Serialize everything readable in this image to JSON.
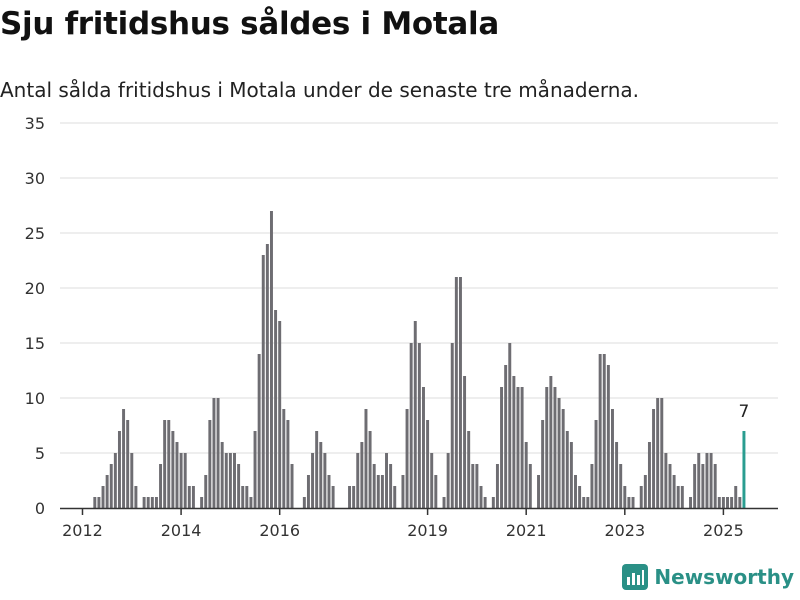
{
  "title": "Sju fritidshus såldes i Motala",
  "subtitle": "Antal sålda fritidshus i Motala under de senaste tre månaderna.",
  "brand": {
    "name": "Newsworthy",
    "icon": "newsworthy-logo-icon",
    "color": "#2a9086"
  },
  "colors": {
    "bar": "#6e6d72",
    "highlight": "#2a9d90",
    "grid": "#dddddd",
    "axis": "#333333"
  },
  "chart_data": {
    "type": "bar",
    "ylim": [
      0,
      35
    ],
    "yticks": [
      0,
      5,
      10,
      15,
      20,
      25,
      30,
      35
    ],
    "xticks": [
      {
        "label": "2012",
        "index": 4
      },
      {
        "label": "2014",
        "index": 28
      },
      {
        "label": "2016",
        "index": 52
      },
      {
        "label": "2019",
        "index": 88
      },
      {
        "label": "2021",
        "index": 112
      },
      {
        "label": "2023",
        "index": 136
      },
      {
        "label": "2025",
        "index": 160
      }
    ],
    "grid": true,
    "highlight_index": 165,
    "highlight_label": "7",
    "values": [
      0,
      0,
      0,
      0,
      0,
      0,
      0,
      1,
      1,
      2,
      3,
      4,
      5,
      7,
      9,
      8,
      5,
      2,
      0,
      1,
      1,
      1,
      1,
      4,
      8,
      8,
      7,
      6,
      5,
      5,
      2,
      2,
      0,
      1,
      3,
      8,
      10,
      10,
      6,
      5,
      5,
      5,
      4,
      2,
      2,
      1,
      7,
      14,
      23,
      24,
      27,
      18,
      17,
      9,
      8,
      4,
      0,
      0,
      1,
      3,
      5,
      7,
      6,
      5,
      3,
      2,
      0,
      0,
      0,
      2,
      2,
      5,
      6,
      9,
      7,
      4,
      3,
      3,
      5,
      4,
      2,
      0,
      3,
      9,
      15,
      17,
      15,
      11,
      8,
      5,
      3,
      0,
      1,
      5,
      15,
      21,
      21,
      12,
      7,
      4,
      4,
      2,
      1,
      0,
      1,
      4,
      11,
      13,
      15,
      12,
      11,
      11,
      6,
      4,
      0,
      3,
      8,
      11,
      12,
      11,
      10,
      9,
      7,
      6,
      3,
      2,
      1,
      1,
      4,
      8,
      14,
      14,
      13,
      9,
      6,
      4,
      2,
      1,
      1,
      0,
      2,
      3,
      6,
      9,
      10,
      10,
      5,
      4,
      3,
      2,
      2,
      0,
      1,
      4,
      5,
      4,
      5,
      5,
      4,
      1,
      1,
      1,
      1,
      2,
      1,
      7
    ]
  }
}
